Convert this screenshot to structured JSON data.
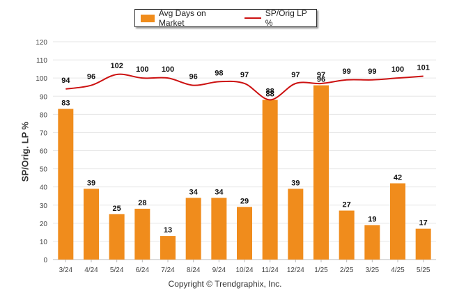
{
  "legend": {
    "bar_label": "Avg Days on Market",
    "line_label": "SP/Orig LP %"
  },
  "copyright": "Copyright © Trendgraphix, Inc.",
  "colors": {
    "bar": "#f08c1c",
    "line": "#cc1111",
    "grid": "#e6e6e6"
  },
  "chart_data": {
    "type": "bar",
    "categories": [
      "3/24",
      "4/24",
      "5/24",
      "6/24",
      "7/24",
      "8/24",
      "9/24",
      "10/24",
      "11/24",
      "12/24",
      "1/25",
      "2/25",
      "3/25",
      "4/25",
      "5/25"
    ],
    "series": [
      {
        "name": "Avg Days on Market",
        "type": "bar",
        "values": [
          83,
          39,
          25,
          28,
          13,
          34,
          34,
          29,
          88,
          39,
          96,
          27,
          19,
          42,
          17
        ]
      },
      {
        "name": "SP/Orig LP %",
        "type": "line",
        "values": [
          94,
          96,
          102,
          100,
          100,
          96,
          98,
          97,
          88,
          97,
          97,
          99,
          99,
          100,
          101
        ]
      }
    ],
    "ylabel": "SP/Orig. LP %",
    "ylim": [
      0,
      120
    ],
    "yticks": [
      0,
      10,
      20,
      30,
      40,
      50,
      60,
      70,
      80,
      90,
      100,
      110,
      120
    ],
    "grid": true,
    "legend_position": "top-center"
  }
}
